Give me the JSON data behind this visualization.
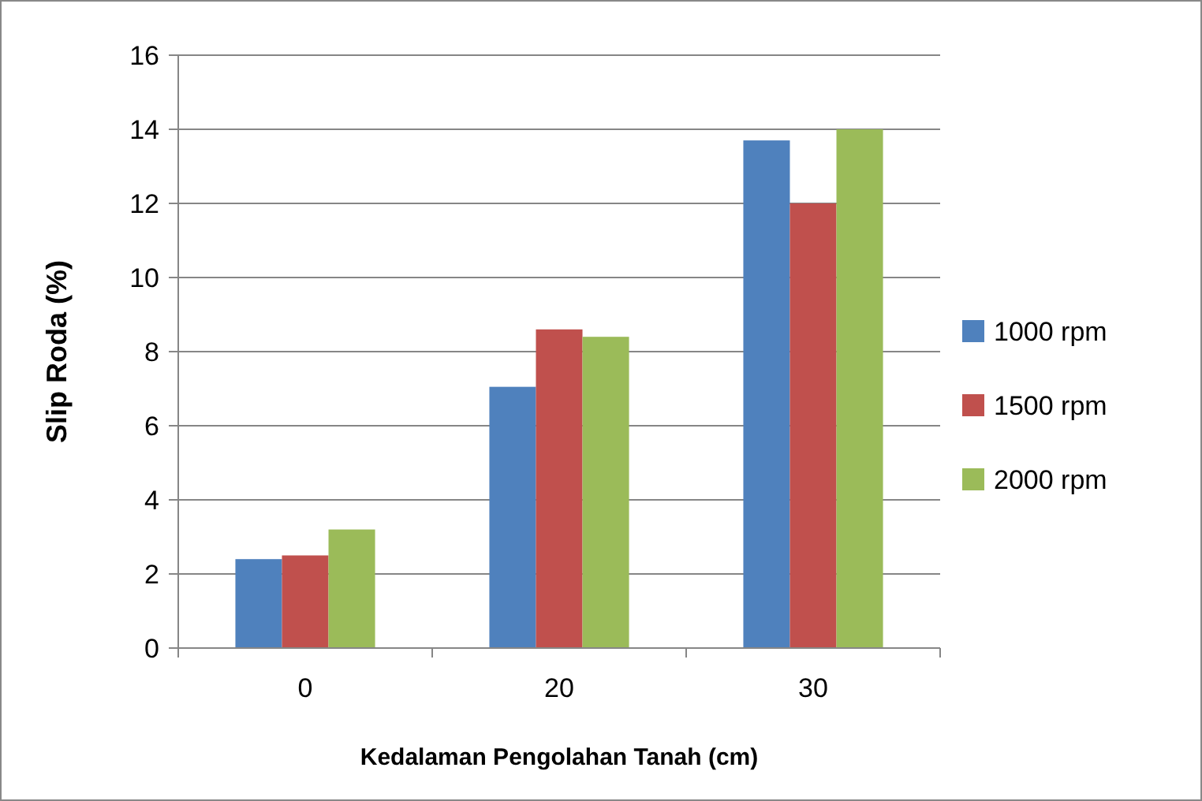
{
  "chart_data": {
    "type": "bar",
    "xlabel": "Kedalaman Pengolahan Tanah (cm)",
    "ylabel": "Slip Roda (%)",
    "categories": [
      "0",
      "20",
      "30"
    ],
    "series": [
      {
        "name": "1000 rpm",
        "color": "#4f81bd",
        "values": [
          2.4,
          7.05,
          13.7
        ]
      },
      {
        "name": "1500 rpm",
        "color": "#c0504d",
        "values": [
          2.5,
          8.6,
          12.0
        ]
      },
      {
        "name": "2000 rpm",
        "color": "#9bbb59",
        "values": [
          3.2,
          8.4,
          14.0
        ]
      }
    ],
    "ylim": [
      0,
      16
    ],
    "yticks": [
      0,
      2,
      4,
      6,
      8,
      10,
      12,
      14,
      16
    ],
    "grid": "y",
    "legend": "right"
  }
}
